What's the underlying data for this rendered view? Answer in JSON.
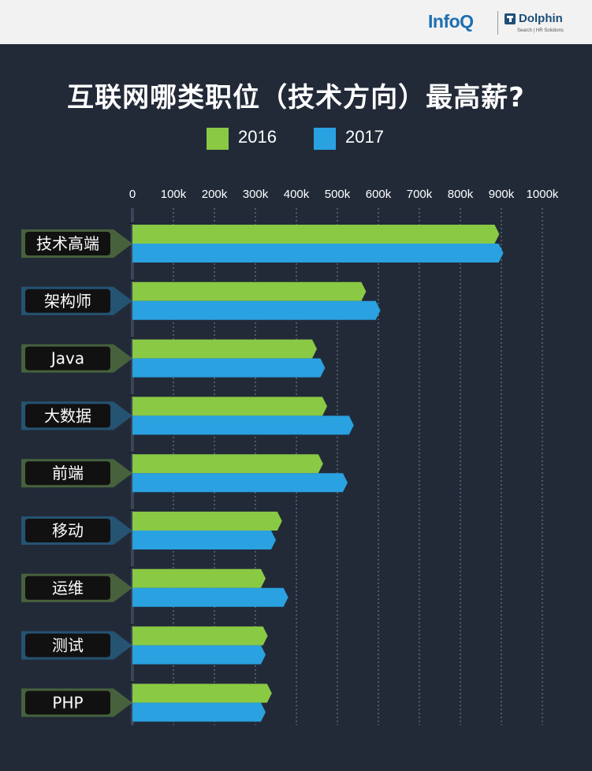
{
  "header": {
    "logo_infoq": "InfoQ",
    "logo_dolphin": "Dolphin",
    "logo_dolphin_sub": "Search | HR Solutions"
  },
  "chart_data": {
    "type": "bar",
    "orientation": "horizontal",
    "title": "互联网哪类职位（技术方向）最高薪?",
    "categories": [
      "技术高端",
      "架构师",
      "Java",
      "大数据",
      "前端",
      "移动",
      "运维",
      "测试",
      "PHP"
    ],
    "series": [
      {
        "name": "2016",
        "color": "#8ac944",
        "values": [
          895,
          570,
          450,
          475,
          465,
          365,
          325,
          330,
          340
        ]
      },
      {
        "name": "2017",
        "color": "#2aa1e0",
        "values": [
          905,
          605,
          470,
          540,
          525,
          350,
          380,
          325,
          325
        ]
      }
    ],
    "xlim": [
      0,
      1000
    ],
    "x_ticks": [
      "0",
      "100k",
      "200k",
      "300k",
      "400k",
      "500k",
      "600k",
      "700k",
      "800k",
      "900k",
      "1000k"
    ],
    "x_tick_values": [
      0,
      100,
      200,
      300,
      400,
      500,
      600,
      700,
      800,
      900,
      1000
    ],
    "grid": true,
    "legend_position": "top-center",
    "colors": {
      "background": "#222a38",
      "axis": "#3a4558",
      "label_box": "#111111",
      "text": "#ffffff"
    }
  }
}
